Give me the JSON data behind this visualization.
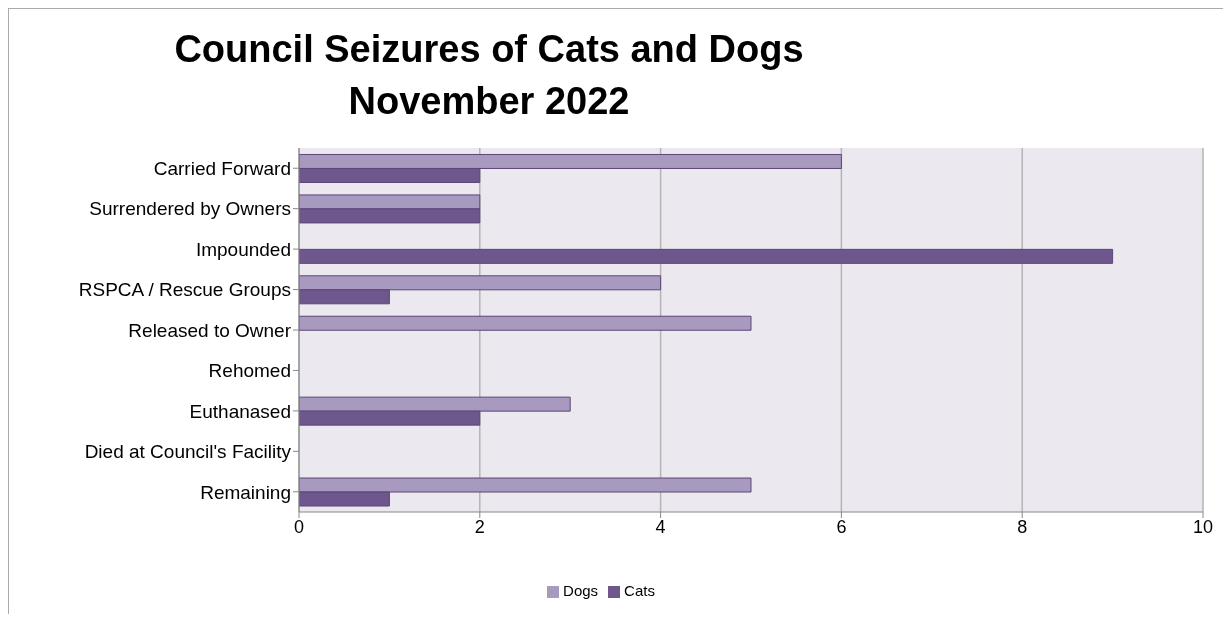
{
  "chart_data": {
    "type": "bar",
    "orientation": "horizontal",
    "title": "Council Seizures of Cats and Dogs\nNovember 2022",
    "categories": [
      "Carried Forward",
      "Surrendered by Owners",
      "Impounded",
      "RSPCA / Rescue Groups",
      "Released to Owner",
      "Rehomed",
      "Euthanased",
      "Died at Council's Facility",
      "Remaining"
    ],
    "series": [
      {
        "name": "Dogs",
        "color": "#a899bf",
        "values": [
          6,
          2,
          0,
          4,
          5,
          0,
          3,
          0,
          5
        ]
      },
      {
        "name": "Cats",
        "color": "#6e578c",
        "values": [
          2,
          2,
          9,
          1,
          0,
          0,
          2,
          0,
          1
        ]
      }
    ],
    "xlim": [
      0,
      10
    ],
    "xticks": [
      0,
      2,
      4,
      6,
      8,
      10
    ],
    "grid": "x",
    "legend": "bottom"
  }
}
